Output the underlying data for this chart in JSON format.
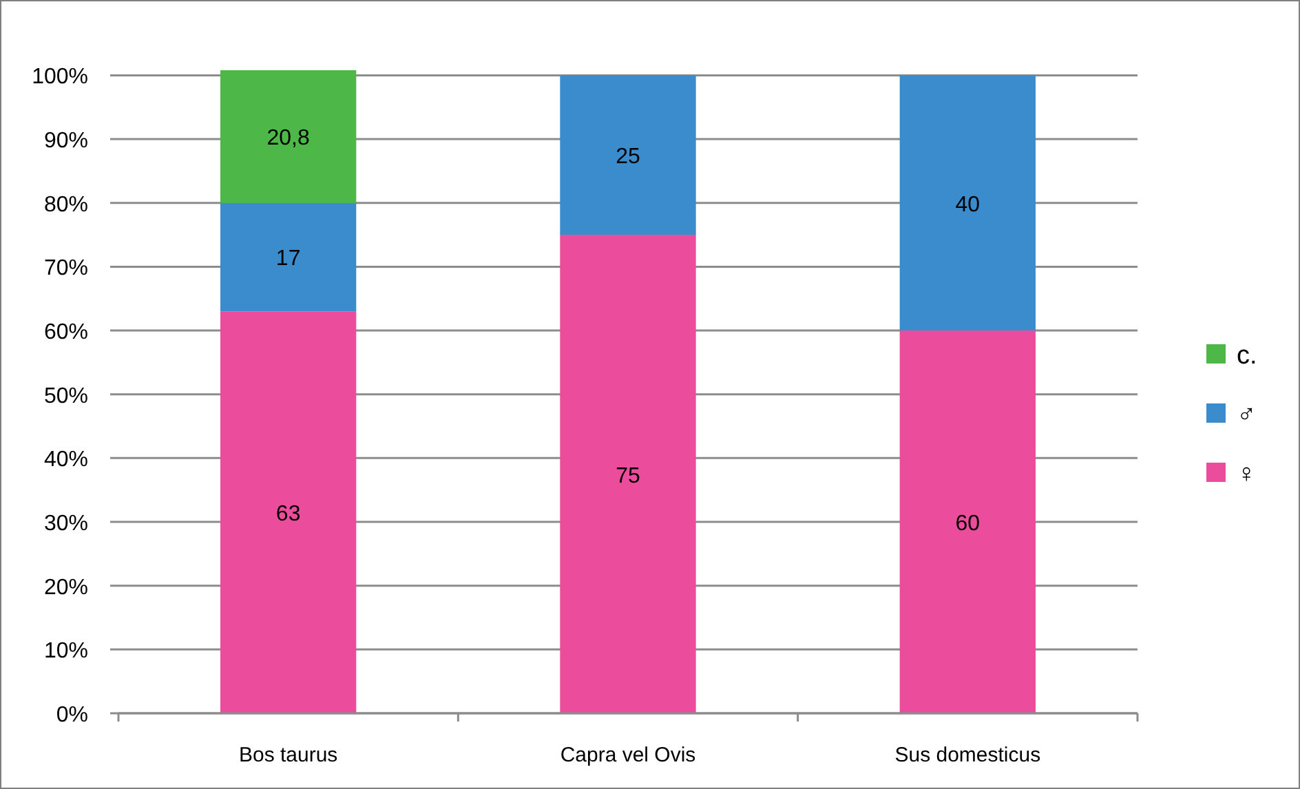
{
  "chart_data": {
    "type": "bar",
    "stacked": true,
    "categories": [
      "Bos taurus",
      "Capra vel Ovis",
      "Sus domesticus"
    ],
    "series": [
      {
        "name": "♀",
        "color": "#eb4c9c",
        "values": [
          63,
          75,
          60
        ],
        "value_labels": [
          "63",
          "75",
          "60"
        ]
      },
      {
        "name": "♂",
        "color": "#3a8ccc",
        "values": [
          17,
          25,
          40
        ],
        "value_labels": [
          "17",
          "25",
          "40"
        ]
      },
      {
        "name": "c.",
        "color": "#4db848",
        "values": [
          20.8,
          null,
          null
        ],
        "value_labels": [
          "20,8",
          null,
          null
        ]
      }
    ],
    "ylim": [
      0,
      100.8
    ],
    "yticks": [
      {
        "value": 0,
        "label": "0%"
      },
      {
        "value": 10,
        "label": "10%"
      },
      {
        "value": 20,
        "label": "20%"
      },
      {
        "value": 30,
        "label": "30%"
      },
      {
        "value": 40,
        "label": "40%"
      },
      {
        "value": 50,
        "label": "50%"
      },
      {
        "value": 60,
        "label": "60%"
      },
      {
        "value": 70,
        "label": "70%"
      },
      {
        "value": 80,
        "label": "80%"
      },
      {
        "value": 90,
        "label": "90%"
      },
      {
        "value": 100,
        "label": "100%"
      }
    ],
    "grid": "y",
    "legend": "right"
  }
}
